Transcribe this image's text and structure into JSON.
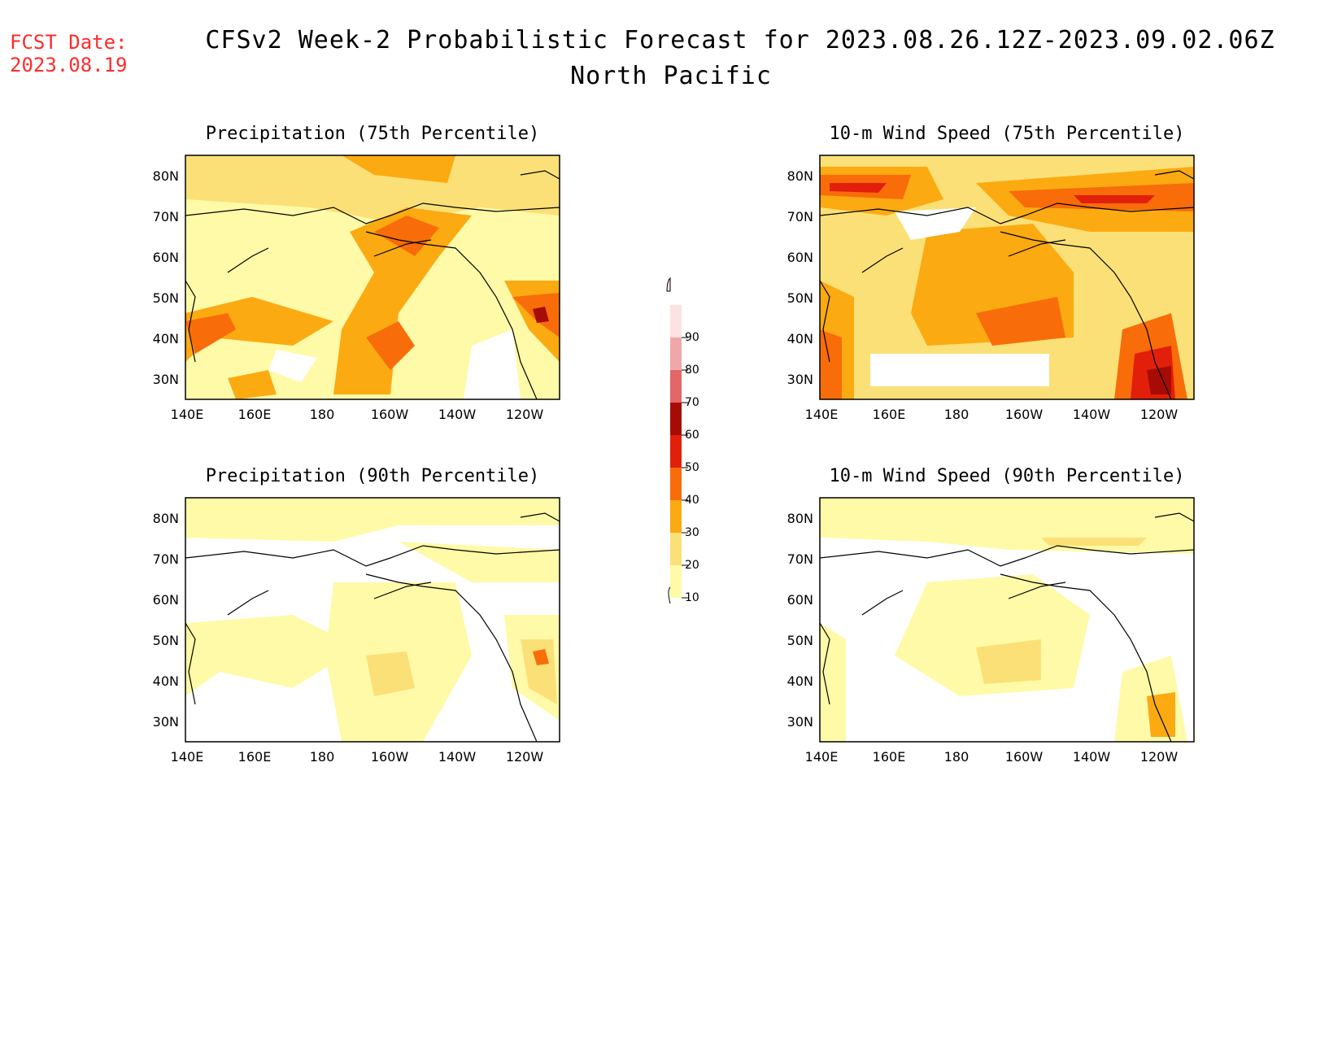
{
  "fcst_label": "FCST Date:",
  "fcst_date": "2023.08.19",
  "title": "CFSv2 Week-2 Probabilistic Forecast for 2023.08.26.12Z-2023.09.02.06Z",
  "subtitle": "North Pacific",
  "panels": [
    {
      "title": "Precipitation (75th Percentile)"
    },
    {
      "title": "10-m Wind Speed (75th Percentile)"
    },
    {
      "title": "Precipitation (90th Percentile)"
    },
    {
      "title": "10-m Wind Speed (90th Percentile)"
    }
  ],
  "lat_labels": [
    "80N",
    "70N",
    "60N",
    "50N",
    "40N",
    "30N"
  ],
  "lon_labels": [
    "140E",
    "160E",
    "180",
    "160W",
    "140W",
    "120W"
  ],
  "colorbar": {
    "levels": [
      "10",
      "20",
      "30",
      "40",
      "50",
      "60",
      "70",
      "80",
      "90"
    ],
    "colors": [
      "#fffaa8",
      "#fbe077",
      "#fbaa12",
      "#f86c0a",
      "#e21f0a",
      "#a60c05",
      "#e26767",
      "#f0a7a8",
      "#fde2e2"
    ]
  }
}
